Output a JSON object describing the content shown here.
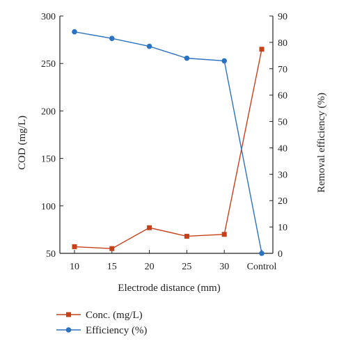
{
  "chart_data": {
    "type": "line",
    "categories": [
      "10",
      "15",
      "20",
      "25",
      "30",
      "Control"
    ],
    "xlabel": "Electrode distance (mm)",
    "ylabel_left": "COD (mg/L)",
    "ylabel_right": "Removal efficiency (%)",
    "ylim_left": [
      50,
      300
    ],
    "yticks_left": [
      50,
      100,
      150,
      200,
      250,
      300
    ],
    "ylim_right": [
      0,
      90
    ],
    "yticks_right": [
      0,
      10,
      20,
      30,
      40,
      50,
      60,
      70,
      80,
      90
    ],
    "grid": false,
    "legend_position": "bottom-left",
    "series": [
      {
        "name": "Conc. (mg/L)",
        "axis": "left",
        "marker": "square",
        "color": "#c8401a",
        "values": [
          57,
          55,
          77,
          68,
          70,
          265
        ]
      },
      {
        "name": "Efficiency (%)",
        "axis": "right",
        "marker": "circle",
        "color": "#2a72c2",
        "values": [
          84,
          81.5,
          78.5,
          74,
          73,
          0
        ]
      }
    ]
  }
}
